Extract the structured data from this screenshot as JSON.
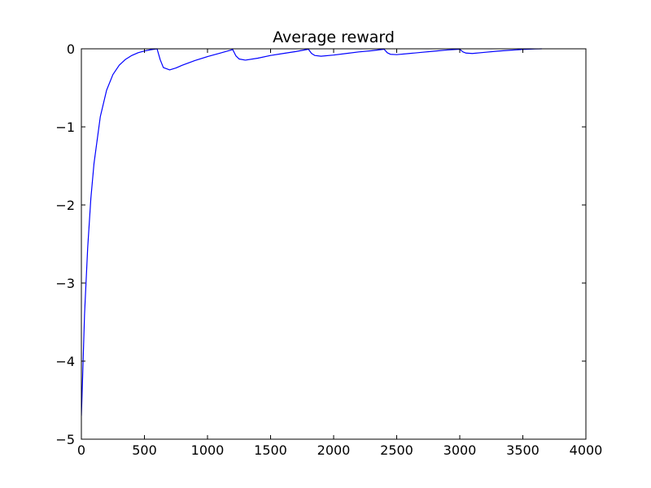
{
  "chart_data": {
    "type": "line",
    "title": "Average reward",
    "xlabel": "",
    "ylabel": "",
    "xlim": [
      0,
      4000
    ],
    "ylim": [
      -5,
      0
    ],
    "xticks": [
      0,
      500,
      1000,
      1500,
      2000,
      2500,
      3000,
      3500,
      4000
    ],
    "yticks": [
      0,
      -1,
      -2,
      -3,
      -4,
      -5
    ],
    "xtick_labels": [
      "0",
      "500",
      "1000",
      "1500",
      "2000",
      "2500",
      "3000",
      "3500",
      "4000"
    ],
    "ytick_labels": [
      "0",
      "−1",
      "−2",
      "−3",
      "−4",
      "−5"
    ],
    "grid": false,
    "line_color": "#0000ff",
    "series": [
      {
        "x": [
          0,
          10,
          25,
          50,
          75,
          100,
          150,
          200,
          250,
          300,
          350,
          400,
          450,
          500,
          550,
          600,
          625,
          650,
          700,
          750,
          800,
          900,
          1000,
          1100,
          1200,
          1225,
          1250,
          1300,
          1400,
          1500,
          1600,
          1700,
          1800,
          1825,
          1850,
          1900,
          2000,
          2100,
          2200,
          2300,
          2400,
          2425,
          2450,
          2500,
          2600,
          2700,
          2800,
          2900,
          3000,
          3025,
          3050,
          3100,
          3200,
          3300,
          3400,
          3500,
          3600,
          3650
        ],
        "y": [
          -4.7,
          -4.2,
          -3.4,
          -2.55,
          -1.92,
          -1.47,
          -0.87,
          -0.53,
          -0.33,
          -0.21,
          -0.135,
          -0.085,
          -0.05,
          -0.028,
          -0.012,
          0.0,
          -0.14,
          -0.24,
          -0.27,
          -0.245,
          -0.21,
          -0.15,
          -0.1,
          -0.055,
          -0.01,
          -0.09,
          -0.13,
          -0.145,
          -0.12,
          -0.085,
          -0.06,
          -0.035,
          -0.005,
          -0.06,
          -0.085,
          -0.095,
          -0.08,
          -0.06,
          -0.04,
          -0.025,
          -0.005,
          -0.05,
          -0.07,
          -0.075,
          -0.06,
          -0.045,
          -0.03,
          -0.015,
          -0.005,
          -0.04,
          -0.055,
          -0.06,
          -0.045,
          -0.03,
          -0.018,
          -0.008,
          -0.002,
          0.0
        ]
      }
    ]
  }
}
